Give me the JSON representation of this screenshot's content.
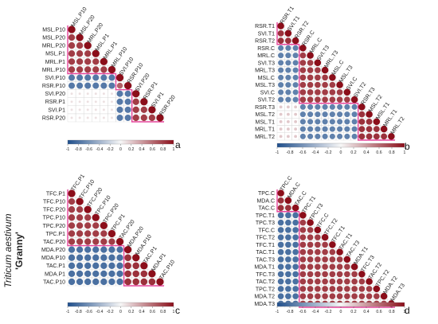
{
  "figure": {
    "side_label_species": "Triticum aestivum",
    "side_label_cultivar": "'Granny'"
  },
  "colors": {
    "negative": "#1f4e8c",
    "neutral": "#f7f7f7",
    "positive": "#8b0e1a",
    "highlight_box": "#e6459b"
  },
  "chart_data": [
    {
      "type": "heatmap",
      "subtype": "correlation-lower-triangle",
      "panel_label": "a",
      "variables": [
        "MSL.P10",
        "MSL.P20",
        "MRL.P20",
        "MSL.P1",
        "MRL.P1",
        "MRL.P10",
        "SVI.P10",
        "RSR.P10",
        "SVI.P20",
        "RSR.P1",
        "SVI.P1",
        "RSR.P20"
      ],
      "blocks": [
        {
          "start": 0,
          "end": 6,
          "value": 0.8
        },
        {
          "start": 6,
          "end": 8,
          "value": 0.65
        },
        {
          "start": 8,
          "end": 12,
          "value": 0.8
        }
      ],
      "cross_value": -0.75,
      "mid_value": 0.1,
      "colorbar_ticks": [
        "-1",
        "-0.8",
        "-0.6",
        "-0.4",
        "-0.2",
        "0",
        "0.2",
        "0.4",
        "0.6",
        "0.8",
        "1"
      ],
      "colorbar_range": [
        -1,
        1
      ]
    },
    {
      "type": "heatmap",
      "subtype": "correlation-lower-triangle",
      "panel_label": "b",
      "variables": [
        "RSR.T1",
        "SVI.T1",
        "RSR.T2",
        "RSR.C",
        "MRL.C",
        "SVI.T3",
        "MRL.T3",
        "MSL.C",
        "MSL.T3",
        "SVI.C",
        "SVI.T2",
        "RSR.T3",
        "MSL.T2",
        "MSL.T1",
        "MRL.T1",
        "MRL.T2"
      ],
      "blocks": [
        {
          "start": 0,
          "end": 3,
          "value": 0.85
        },
        {
          "start": 3,
          "end": 11,
          "value": 0.8
        },
        {
          "start": 11,
          "end": 16,
          "value": 0.85
        }
      ],
      "cross_value": -0.7,
      "mid_value": 0.2,
      "colorbar_ticks": [
        "-1",
        "-0.8",
        "-0.6",
        "-0.4",
        "-0.2",
        "0",
        "0.2",
        "0.4",
        "0.6",
        "0.8",
        "1"
      ],
      "colorbar_range": [
        -1,
        1
      ]
    },
    {
      "type": "heatmap",
      "subtype": "correlation-lower-triangle",
      "panel_label": "c",
      "variables": [
        "TFC.P1",
        "TFC.P10",
        "TFC.P20",
        "TPC.P10",
        "TPC.P20",
        "TPC.P1",
        "TAC.P20",
        "MDA.P20",
        "MDA.P10",
        "TAC.P1",
        "MDA.P1",
        "TAC.P10"
      ],
      "blocks": [
        {
          "start": 0,
          "end": 7,
          "value": 0.8
        },
        {
          "start": 7,
          "end": 12,
          "value": 0.85
        }
      ],
      "cross_value": -0.8,
      "mid_value": 0.1,
      "colorbar_ticks": [
        "-1",
        "-0.8",
        "-0.6",
        "-0.4",
        "-0.2",
        "0",
        "0.2",
        "0.4",
        "0.6",
        "0.8",
        "1"
      ],
      "colorbar_range": [
        -1,
        1
      ]
    },
    {
      "type": "heatmap",
      "subtype": "correlation-lower-triangle",
      "panel_label": "d",
      "variables": [
        "TPC.C",
        "MDA.C",
        "TAC.C",
        "TPC.T1",
        "TPC.T3",
        "TFC.C",
        "TFC.T2",
        "TFC.T1",
        "TAC.T1",
        "TAC.T3",
        "MDA.T1",
        "TFC.T3",
        "TAC.T2",
        "TPC.T2",
        "MDA.T2",
        "MDA.T3"
      ],
      "blocks": [
        {
          "start": 0,
          "end": 3,
          "value": 0.85
        },
        {
          "start": 3,
          "end": 16,
          "value": 0.8
        }
      ],
      "cross_value": -0.8,
      "mid_value": 0.1,
      "colorbar_ticks": [
        "-1",
        "-0.8",
        "-0.6",
        "-0.4",
        "-0.2",
        "0",
        "0.2",
        "0.4",
        "0.6",
        "0.8",
        "1"
      ],
      "colorbar_range": [
        -1,
        1
      ]
    }
  ]
}
